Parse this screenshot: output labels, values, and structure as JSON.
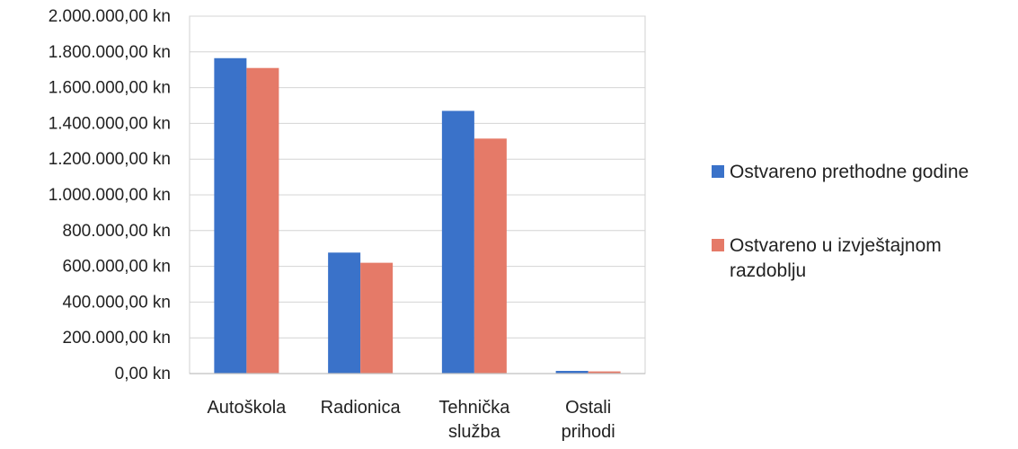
{
  "chart_data": {
    "type": "bar",
    "title": "",
    "xlabel": "",
    "ylabel": "",
    "categories": [
      [
        "Autoškola"
      ],
      [
        "Radionica"
      ],
      [
        "Tehnička",
        "služba"
      ],
      [
        "Ostali",
        "prihodi"
      ]
    ],
    "series": [
      {
        "name": [
          "Ostvareno prethodne godine"
        ],
        "color": "#3a72c9",
        "values": [
          1765000,
          677000,
          1470000,
          15000
        ]
      },
      {
        "name": [
          "Ostvareno u izvještajnom",
          "razdoblju"
        ],
        "color": "#e57a68",
        "values": [
          1710000,
          620000,
          1315000,
          12000
        ]
      }
    ],
    "ylim": [
      0,
      2000000
    ],
    "yticks": [
      0,
      200000,
      400000,
      600000,
      800000,
      1000000,
      1200000,
      1400000,
      1600000,
      1800000,
      2000000
    ],
    "ytick_labels": [
      "0,00 kn",
      "200.000,00 kn",
      "400.000,00 kn",
      "600.000,00 kn",
      "800.000,00 kn",
      "1.000.000,00 kn",
      "1.200.000,00 kn",
      "1.400.000,00 kn",
      "1.600.000,00 kn",
      "1.800.000,00 kn",
      "2.000.000,00 kn"
    ],
    "grid": true,
    "legend": "right"
  }
}
